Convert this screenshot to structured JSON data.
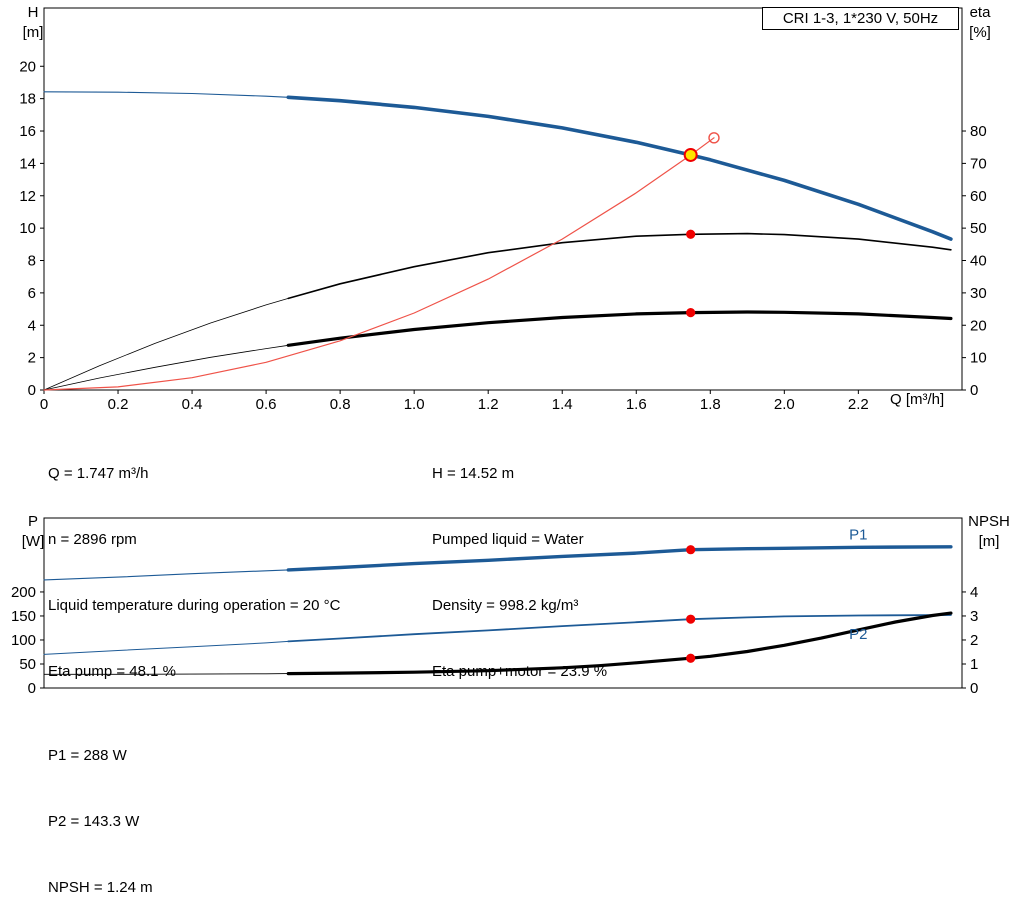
{
  "colors": {
    "blue": "#1d5a96",
    "black": "#000000",
    "red": "#f00000",
    "system": "#ef5349",
    "yellow": "#ffe400",
    "white": "#ffffff"
  },
  "axis_labels": {
    "h": "H",
    "h_unit": "[m]",
    "eta": "eta",
    "eta_unit": "[%]",
    "q": "Q [m³/h]",
    "p": "P",
    "p_unit": "[W]",
    "npsh": "NPSH",
    "npsh_unit": "[m]"
  },
  "info": {
    "col1": [
      "Q = 1.747 m³/h",
      "n = 2896 rpm",
      "Liquid temperature during operation = 20 °C",
      "Eta pump = 48.1 %"
    ],
    "col2": [
      "H = 14.52 m",
      "Pumped liquid = Water",
      "Density = 998.2 kg/m³",
      "Eta pump+motor = 23.9 %"
    ]
  },
  "footer": [
    "P1 = 288 W",
    "P2 = 143.3 W",
    "NPSH = 1.24 m"
  ],
  "chart_data": [
    {
      "type": "line",
      "title": "CRI 1-3, 1*230 V, 50Hz",
      "x_axis": {
        "label": "Q [m³/h]",
        "min": 0,
        "max": 2.48,
        "ticks": [
          {
            "v": 0,
            "label": "0"
          },
          {
            "v": 0.2,
            "label": "0.2"
          },
          {
            "v": 0.4,
            "label": "0.4"
          },
          {
            "v": 0.6,
            "label": "0.6"
          },
          {
            "v": 0.8,
            "label": "0.8"
          },
          {
            "v": 1.0,
            "label": "1.0"
          },
          {
            "v": 1.2,
            "label": "1.2"
          },
          {
            "v": 1.4,
            "label": "1.4"
          },
          {
            "v": 1.6,
            "label": "1.6"
          },
          {
            "v": 1.8,
            "label": "1.8"
          },
          {
            "v": 2.0,
            "label": "2.0"
          },
          {
            "v": 2.2,
            "label": "2.2"
          }
        ]
      },
      "left_axis": {
        "label": "H [m]",
        "min": 0,
        "max": 23.6,
        "ticks": [
          {
            "v": 0,
            "label": "0"
          },
          {
            "v": 2,
            "label": "2"
          },
          {
            "v": 4,
            "label": "4"
          },
          {
            "v": 6,
            "label": "6"
          },
          {
            "v": 8,
            "label": "8"
          },
          {
            "v": 10,
            "label": "10"
          },
          {
            "v": 12,
            "label": "12"
          },
          {
            "v": 14,
            "label": "14"
          },
          {
            "v": 16,
            "label": "16"
          },
          {
            "v": 18,
            "label": "18"
          },
          {
            "v": 20,
            "label": "20"
          }
        ]
      },
      "right_axis": {
        "label": "eta [%]",
        "min": 0,
        "max": 118,
        "ticks": [
          {
            "v": 0,
            "label": "0"
          },
          {
            "v": 10,
            "label": "10"
          },
          {
            "v": 20,
            "label": "20"
          },
          {
            "v": 30,
            "label": "30"
          },
          {
            "v": 40,
            "label": "40"
          },
          {
            "v": 50,
            "label": "50"
          },
          {
            "v": 60,
            "label": "60"
          },
          {
            "v": 70,
            "label": "70"
          },
          {
            "v": 80,
            "label": "80"
          }
        ]
      },
      "series": [
        {
          "name": "head-curve",
          "axis": "left",
          "color": "blue",
          "segments": [
            {
              "to": 0.66,
              "w": 1.1
            },
            {
              "from": 0.66,
              "w": 3.6
            }
          ],
          "points": [
            [
              0,
              18.42
            ],
            [
              0.2,
              18.4
            ],
            [
              0.4,
              18.32
            ],
            [
              0.6,
              18.15
            ],
            [
              0.66,
              18.08
            ],
            [
              0.8,
              17.87
            ],
            [
              1.0,
              17.46
            ],
            [
              1.2,
              16.9
            ],
            [
              1.4,
              16.19
            ],
            [
              1.6,
              15.3
            ],
            [
              1.747,
              14.52
            ],
            [
              1.8,
              14.22
            ],
            [
              2.0,
              12.95
            ],
            [
              2.2,
              11.47
            ],
            [
              2.4,
              9.78
            ],
            [
              2.45,
              9.32
            ]
          ]
        },
        {
          "name": "eta-pump-curve",
          "axis": "right",
          "color": "black",
          "segments": [
            {
              "to": 0.66,
              "w": 0.8
            },
            {
              "from": 0.66,
              "w": 1.6
            }
          ],
          "points": [
            [
              0,
              0
            ],
            [
              0.15,
              7.5
            ],
            [
              0.3,
              14.4
            ],
            [
              0.45,
              20.7
            ],
            [
              0.6,
              26.3
            ],
            [
              0.66,
              28.3
            ],
            [
              0.8,
              32.8
            ],
            [
              1.0,
              38.1
            ],
            [
              1.2,
              42.4
            ],
            [
              1.4,
              45.5
            ],
            [
              1.6,
              47.5
            ],
            [
              1.747,
              48.1
            ],
            [
              1.9,
              48.3
            ],
            [
              2.0,
              48.0
            ],
            [
              2.2,
              46.6
            ],
            [
              2.4,
              44.1
            ],
            [
              2.45,
              43.3
            ]
          ]
        },
        {
          "name": "eta-pump-motor-curve",
          "axis": "right",
          "color": "black",
          "segments": [
            {
              "to": 0.66,
              "w": 0.8
            },
            {
              "from": 0.66,
              "w": 3.2
            }
          ],
          "points": [
            [
              0,
              0
            ],
            [
              0.15,
              3.7
            ],
            [
              0.3,
              7.0
            ],
            [
              0.45,
              10.1
            ],
            [
              0.6,
              12.8
            ],
            [
              0.66,
              13.8
            ],
            [
              0.8,
              16.0
            ],
            [
              1.0,
              18.7
            ],
            [
              1.2,
              20.8
            ],
            [
              1.4,
              22.4
            ],
            [
              1.6,
              23.5
            ],
            [
              1.747,
              23.9
            ],
            [
              1.9,
              24.1
            ],
            [
              2.0,
              24.0
            ],
            [
              2.2,
              23.5
            ],
            [
              2.4,
              22.4
            ],
            [
              2.45,
              22.1
            ]
          ]
        },
        {
          "name": "system-curve",
          "axis": "left",
          "color": "system",
          "segments": [
            {
              "w": 1.2
            }
          ],
          "points": [
            [
              0,
              0
            ],
            [
              0.2,
              0.19
            ],
            [
              0.4,
              0.76
            ],
            [
              0.6,
              1.71
            ],
            [
              0.8,
              3.04
            ],
            [
              1.0,
              4.76
            ],
            [
              1.2,
              6.85
            ],
            [
              1.4,
              9.32
            ],
            [
              1.6,
              12.18
            ],
            [
              1.747,
              14.52
            ],
            [
              1.81,
              15.58
            ]
          ]
        }
      ],
      "markers": [
        {
          "name": "system-curve-end",
          "q": 1.81,
          "v": 15.58,
          "axis": "left",
          "style": "open"
        },
        {
          "name": "duty-point",
          "q": 1.747,
          "v": 14.52,
          "axis": "left",
          "style": "duty"
        },
        {
          "name": "eta-pump-point",
          "q": 1.747,
          "v": 48.1,
          "axis": "right",
          "style": "dot"
        },
        {
          "name": "eta-pump-motor-point",
          "q": 1.747,
          "v": 23.9,
          "axis": "right",
          "style": "dot"
        }
      ],
      "labels": []
    },
    {
      "type": "line",
      "title": "",
      "x_axis": {
        "label": "Q [m³/h]",
        "min": 0,
        "max": 2.48,
        "ticks": []
      },
      "left_axis": {
        "label": "P [W]",
        "min": 0,
        "max": 354,
        "ticks": [
          {
            "v": 0,
            "label": "0"
          },
          {
            "v": 50,
            "label": "50"
          },
          {
            "v": 100,
            "label": "100"
          },
          {
            "v": 150,
            "label": "150"
          },
          {
            "v": 200,
            "label": "200"
          }
        ]
      },
      "right_axis": {
        "label": "NPSH [m]",
        "min": 0,
        "max": 7.08,
        "ticks": [
          {
            "v": 0,
            "label": "0"
          },
          {
            "v": 1,
            "label": "1"
          },
          {
            "v": 2,
            "label": "2"
          },
          {
            "v": 3,
            "label": "3"
          },
          {
            "v": 4,
            "label": "4"
          }
        ]
      },
      "series": [
        {
          "name": "p1-curve",
          "axis": "left",
          "color": "blue",
          "segments": [
            {
              "to": 0.66,
              "w": 1.1
            },
            {
              "from": 0.66,
              "w": 3.4
            }
          ],
          "points": [
            [
              0,
              225
            ],
            [
              0.2,
              231
            ],
            [
              0.4,
              238
            ],
            [
              0.6,
              244
            ],
            [
              0.66,
              246
            ],
            [
              0.8,
              251
            ],
            [
              1.0,
              259
            ],
            [
              1.2,
              266
            ],
            [
              1.4,
              274
            ],
            [
              1.6,
              281
            ],
            [
              1.747,
              288
            ],
            [
              1.9,
              290
            ],
            [
              2.0,
              291
            ],
            [
              2.2,
              293
            ],
            [
              2.45,
              294
            ]
          ]
        },
        {
          "name": "p2-curve",
          "axis": "left",
          "color": "blue",
          "segments": [
            {
              "to": 0.66,
              "w": 1.0
            },
            {
              "from": 0.66,
              "w": 1.8
            }
          ],
          "points": [
            [
              0,
              70
            ],
            [
              0.2,
              78
            ],
            [
              0.4,
              86
            ],
            [
              0.6,
              94
            ],
            [
              0.66,
              97
            ],
            [
              0.8,
              103
            ],
            [
              1.0,
              112
            ],
            [
              1.2,
              120
            ],
            [
              1.4,
              129
            ],
            [
              1.6,
              137
            ],
            [
              1.747,
              143.3
            ],
            [
              1.9,
              147
            ],
            [
              2.0,
              149
            ],
            [
              2.2,
              151
            ],
            [
              2.45,
              152
            ]
          ]
        },
        {
          "name": "npsh-curve",
          "axis": "right",
          "color": "black",
          "segments": [
            {
              "to": 0.66,
              "w": 0.9
            },
            {
              "from": 0.66,
              "w": 3.2
            }
          ],
          "points": [
            [
              0,
              0.57
            ],
            [
              0.2,
              0.57
            ],
            [
              0.4,
              0.58
            ],
            [
              0.6,
              0.59
            ],
            [
              0.66,
              0.6
            ],
            [
              0.8,
              0.62
            ],
            [
              1.0,
              0.66
            ],
            [
              1.2,
              0.72
            ],
            [
              1.4,
              0.84
            ],
            [
              1.5,
              0.93
            ],
            [
              1.6,
              1.05
            ],
            [
              1.747,
              1.24
            ],
            [
              1.8,
              1.32
            ],
            [
              1.9,
              1.52
            ],
            [
              2.0,
              1.78
            ],
            [
              2.1,
              2.08
            ],
            [
              2.2,
              2.42
            ],
            [
              2.3,
              2.75
            ],
            [
              2.4,
              3.02
            ],
            [
              2.45,
              3.12
            ]
          ]
        }
      ],
      "markers": [
        {
          "name": "p1-point",
          "q": 1.747,
          "v": 288,
          "axis": "left",
          "style": "dot"
        },
        {
          "name": "p2-point",
          "q": 1.747,
          "v": 143.3,
          "axis": "left",
          "style": "dot"
        },
        {
          "name": "npsh-point",
          "q": 1.747,
          "v": 1.24,
          "axis": "right",
          "style": "dot"
        }
      ],
      "labels": [
        {
          "text": "P1",
          "q": 2.2,
          "v": 320,
          "axis": "left",
          "color": "blue",
          "name": "p1-curve-label"
        },
        {
          "text": "P2",
          "q": 2.2,
          "v": 112,
          "axis": "left",
          "color": "blue",
          "name": "p2-curve-label"
        }
      ]
    }
  ]
}
